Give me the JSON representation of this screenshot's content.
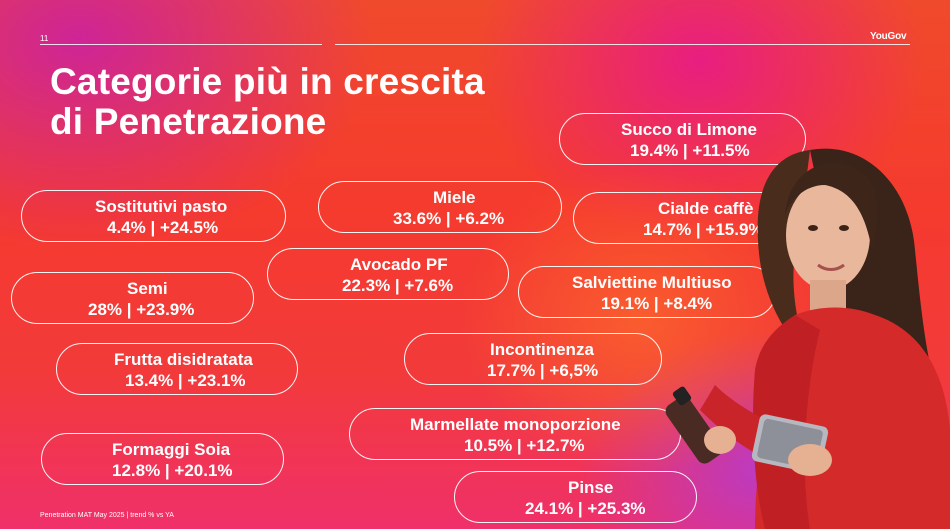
{
  "slide_number": "11",
  "brand": "YouGov",
  "title_lines": [
    "Categorie più in crescita",
    "di Penetrazione"
  ],
  "categories": [
    {
      "name": "Succo di Limone",
      "stats": "19.4% | +11.5%"
    },
    {
      "name": "Sostitutivi pasto",
      "stats": "4.4% | +24.5%"
    },
    {
      "name": "Miele",
      "stats": "33.6% | +6.2%"
    },
    {
      "name": "Cialde caffè",
      "stats": "14.7% | +15.9%"
    },
    {
      "name": "Avocado PF",
      "stats": "22.3% | +7.6%"
    },
    {
      "name": "Semi",
      "stats": "28% | +23.9%"
    },
    {
      "name": "Salviettine Multiuso",
      "stats": "19.1% | +8.4%"
    },
    {
      "name": "Frutta disidratata",
      "stats": "13.4% | +23.1%"
    },
    {
      "name": "Incontinenza",
      "stats": "17.7% | +6,5%"
    },
    {
      "name": "Marmellate monoporzione",
      "stats": "10.5% | +12.7%"
    },
    {
      "name": "Formaggi Soia",
      "stats": "12.8% | +20.1%"
    },
    {
      "name": "Pinse",
      "stats": "24.1% | +25.3%"
    }
  ],
  "footnote": "Penetration MAT May 2025 | trend % vs YA"
}
